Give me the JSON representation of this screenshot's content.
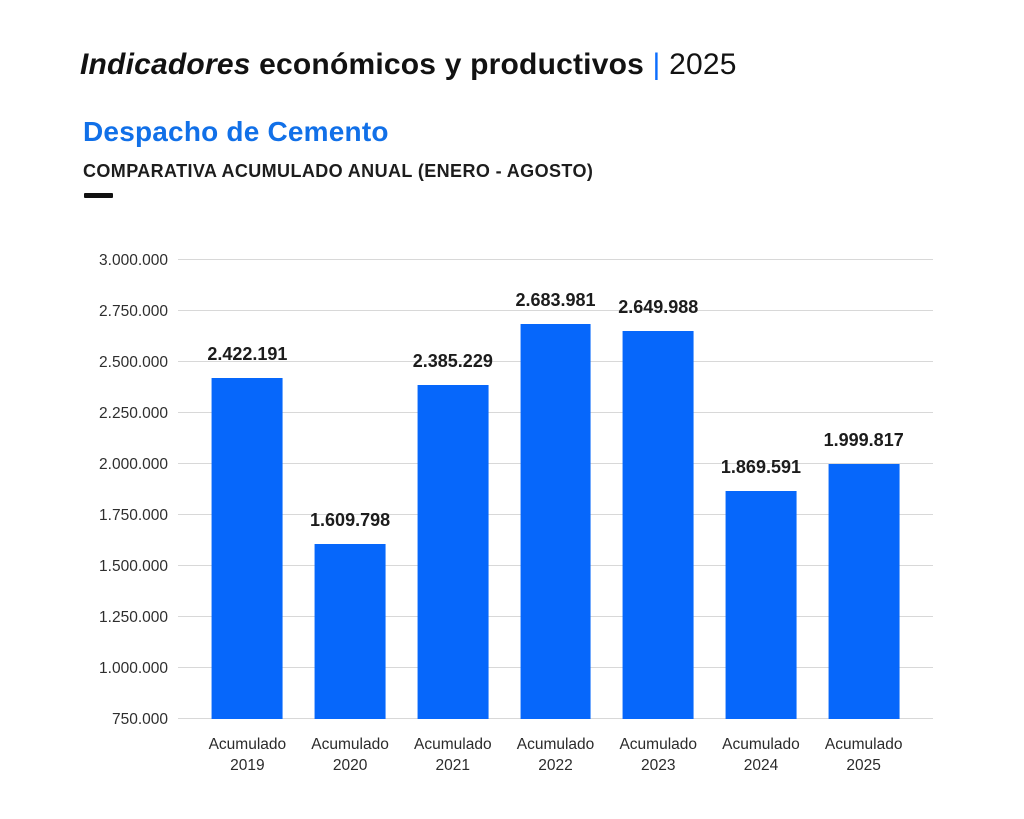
{
  "header": {
    "title_italic": "Indicadores",
    "title_rest": " económicos y productivos ",
    "title_separator": "|",
    "title_year": " 2025",
    "subtitle": "Despacho de Cemento",
    "subheading": "COMPARATIVA ACUMULADO ANUAL (ENERO - AGOSTO)"
  },
  "colors": {
    "bar_blue": "#0667fb",
    "heading_blue": "#1170e8",
    "separator_blue": "#0d6efd",
    "grid_gray": "#d8d8d8",
    "text_dark": "#1c1c1c"
  },
  "chart_data": {
    "type": "bar",
    "title": "Despacho de Cemento",
    "subtitle": "COMPARATIVA ACUMULADO ANUAL (ENERO - AGOSTO)",
    "categories": [
      "Acumulado 2019",
      "Acumulado 2020",
      "Acumulado 2021",
      "Acumulado 2022",
      "Acumulado 2023",
      "Acumulado 2024",
      "Acumulado 2025"
    ],
    "category_top_line": "Acumulado",
    "category_years": [
      "2019",
      "2020",
      "2021",
      "2022",
      "2023",
      "2024",
      "2025"
    ],
    "values": [
      2422191,
      1609798,
      2385229,
      2683981,
      2649988,
      1869591,
      1999817
    ],
    "value_labels": [
      "2.422.191",
      "1.609.798",
      "2.385.229",
      "2.683.981",
      "2.649.988",
      "1.869.591",
      "1.999.817"
    ],
    "xlabel": "",
    "ylabel": "",
    "ylim": [
      750000,
      3000000
    ],
    "ytick_labels": [
      "750.000",
      "1.000.000",
      "1.250.000",
      "1.500.000",
      "1.750.000",
      "2.000.000",
      "2.250.000",
      "2.500.000",
      "2.750.000",
      "3.000.000"
    ],
    "grid": true,
    "legend_position": "none",
    "bar_color": "#0667fb"
  }
}
